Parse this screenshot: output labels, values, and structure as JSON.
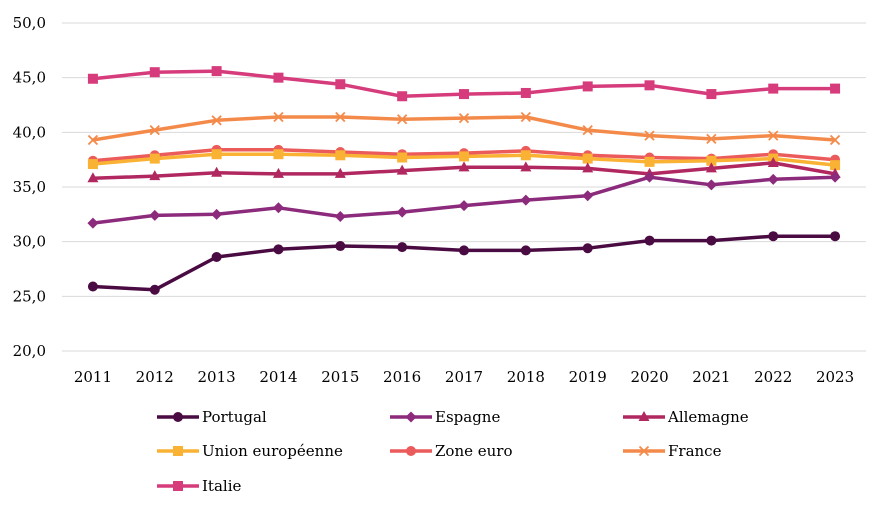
{
  "chart_data": {
    "type": "line",
    "title": "",
    "xlabel": "",
    "ylabel": "",
    "ylim": [
      20,
      50
    ],
    "ytick_step": 5,
    "ytick_labels": [
      "20,0",
      "25,0",
      "30,0",
      "35,0",
      "40,0",
      "45,0",
      "50,0"
    ],
    "grid": true,
    "legend_position": "bottom",
    "x": [
      "2011",
      "2012",
      "2013",
      "2014",
      "2015",
      "2016",
      "2017",
      "2018",
      "2019",
      "2020",
      "2021",
      "2022",
      "2023"
    ],
    "series": [
      {
        "name": "Portugal",
        "color": "#4a0a42",
        "marker": "circle",
        "values": [
          25.9,
          25.6,
          28.6,
          29.3,
          29.6,
          29.5,
          29.2,
          29.2,
          29.4,
          30.1,
          30.1,
          30.5,
          30.5
        ]
      },
      {
        "name": "Espagne",
        "color": "#8c2a7c",
        "marker": "diamond",
        "values": [
          31.7,
          32.4,
          32.5,
          33.1,
          32.3,
          32.7,
          33.3,
          33.8,
          34.2,
          35.9,
          35.2,
          35.7,
          35.9
        ]
      },
      {
        "name": "Allemagne",
        "color": "#b0285f",
        "marker": "triangle",
        "values": [
          35.8,
          36.0,
          36.3,
          36.2,
          36.2,
          36.5,
          36.8,
          36.8,
          36.7,
          36.2,
          36.7,
          37.2,
          36.2
        ]
      },
      {
        "name": "Union européenne",
        "color": "#f9b233",
        "marker": "square",
        "values": [
          37.1,
          37.6,
          38.0,
          38.0,
          37.9,
          37.7,
          37.8,
          37.9,
          37.6,
          37.3,
          37.4,
          37.6,
          37.0
        ]
      },
      {
        "name": "Zone euro",
        "color": "#ec5b5b",
        "marker": "circle",
        "values": [
          37.4,
          37.9,
          38.4,
          38.4,
          38.2,
          38.0,
          38.1,
          38.3,
          37.9,
          37.7,
          37.6,
          38.0,
          37.5
        ]
      },
      {
        "name": "France",
        "color": "#f48a4a",
        "marker": "x",
        "values": [
          39.3,
          40.2,
          41.1,
          41.4,
          41.4,
          41.2,
          41.3,
          41.4,
          40.2,
          39.7,
          39.4,
          39.7,
          39.3
        ]
      },
      {
        "name": "Italie",
        "color": "#d63c7c",
        "marker": "square",
        "values": [
          44.9,
          45.5,
          45.6,
          45.0,
          44.4,
          43.3,
          43.5,
          43.6,
          44.2,
          44.3,
          43.5,
          44.0,
          44.0
        ]
      }
    ]
  }
}
